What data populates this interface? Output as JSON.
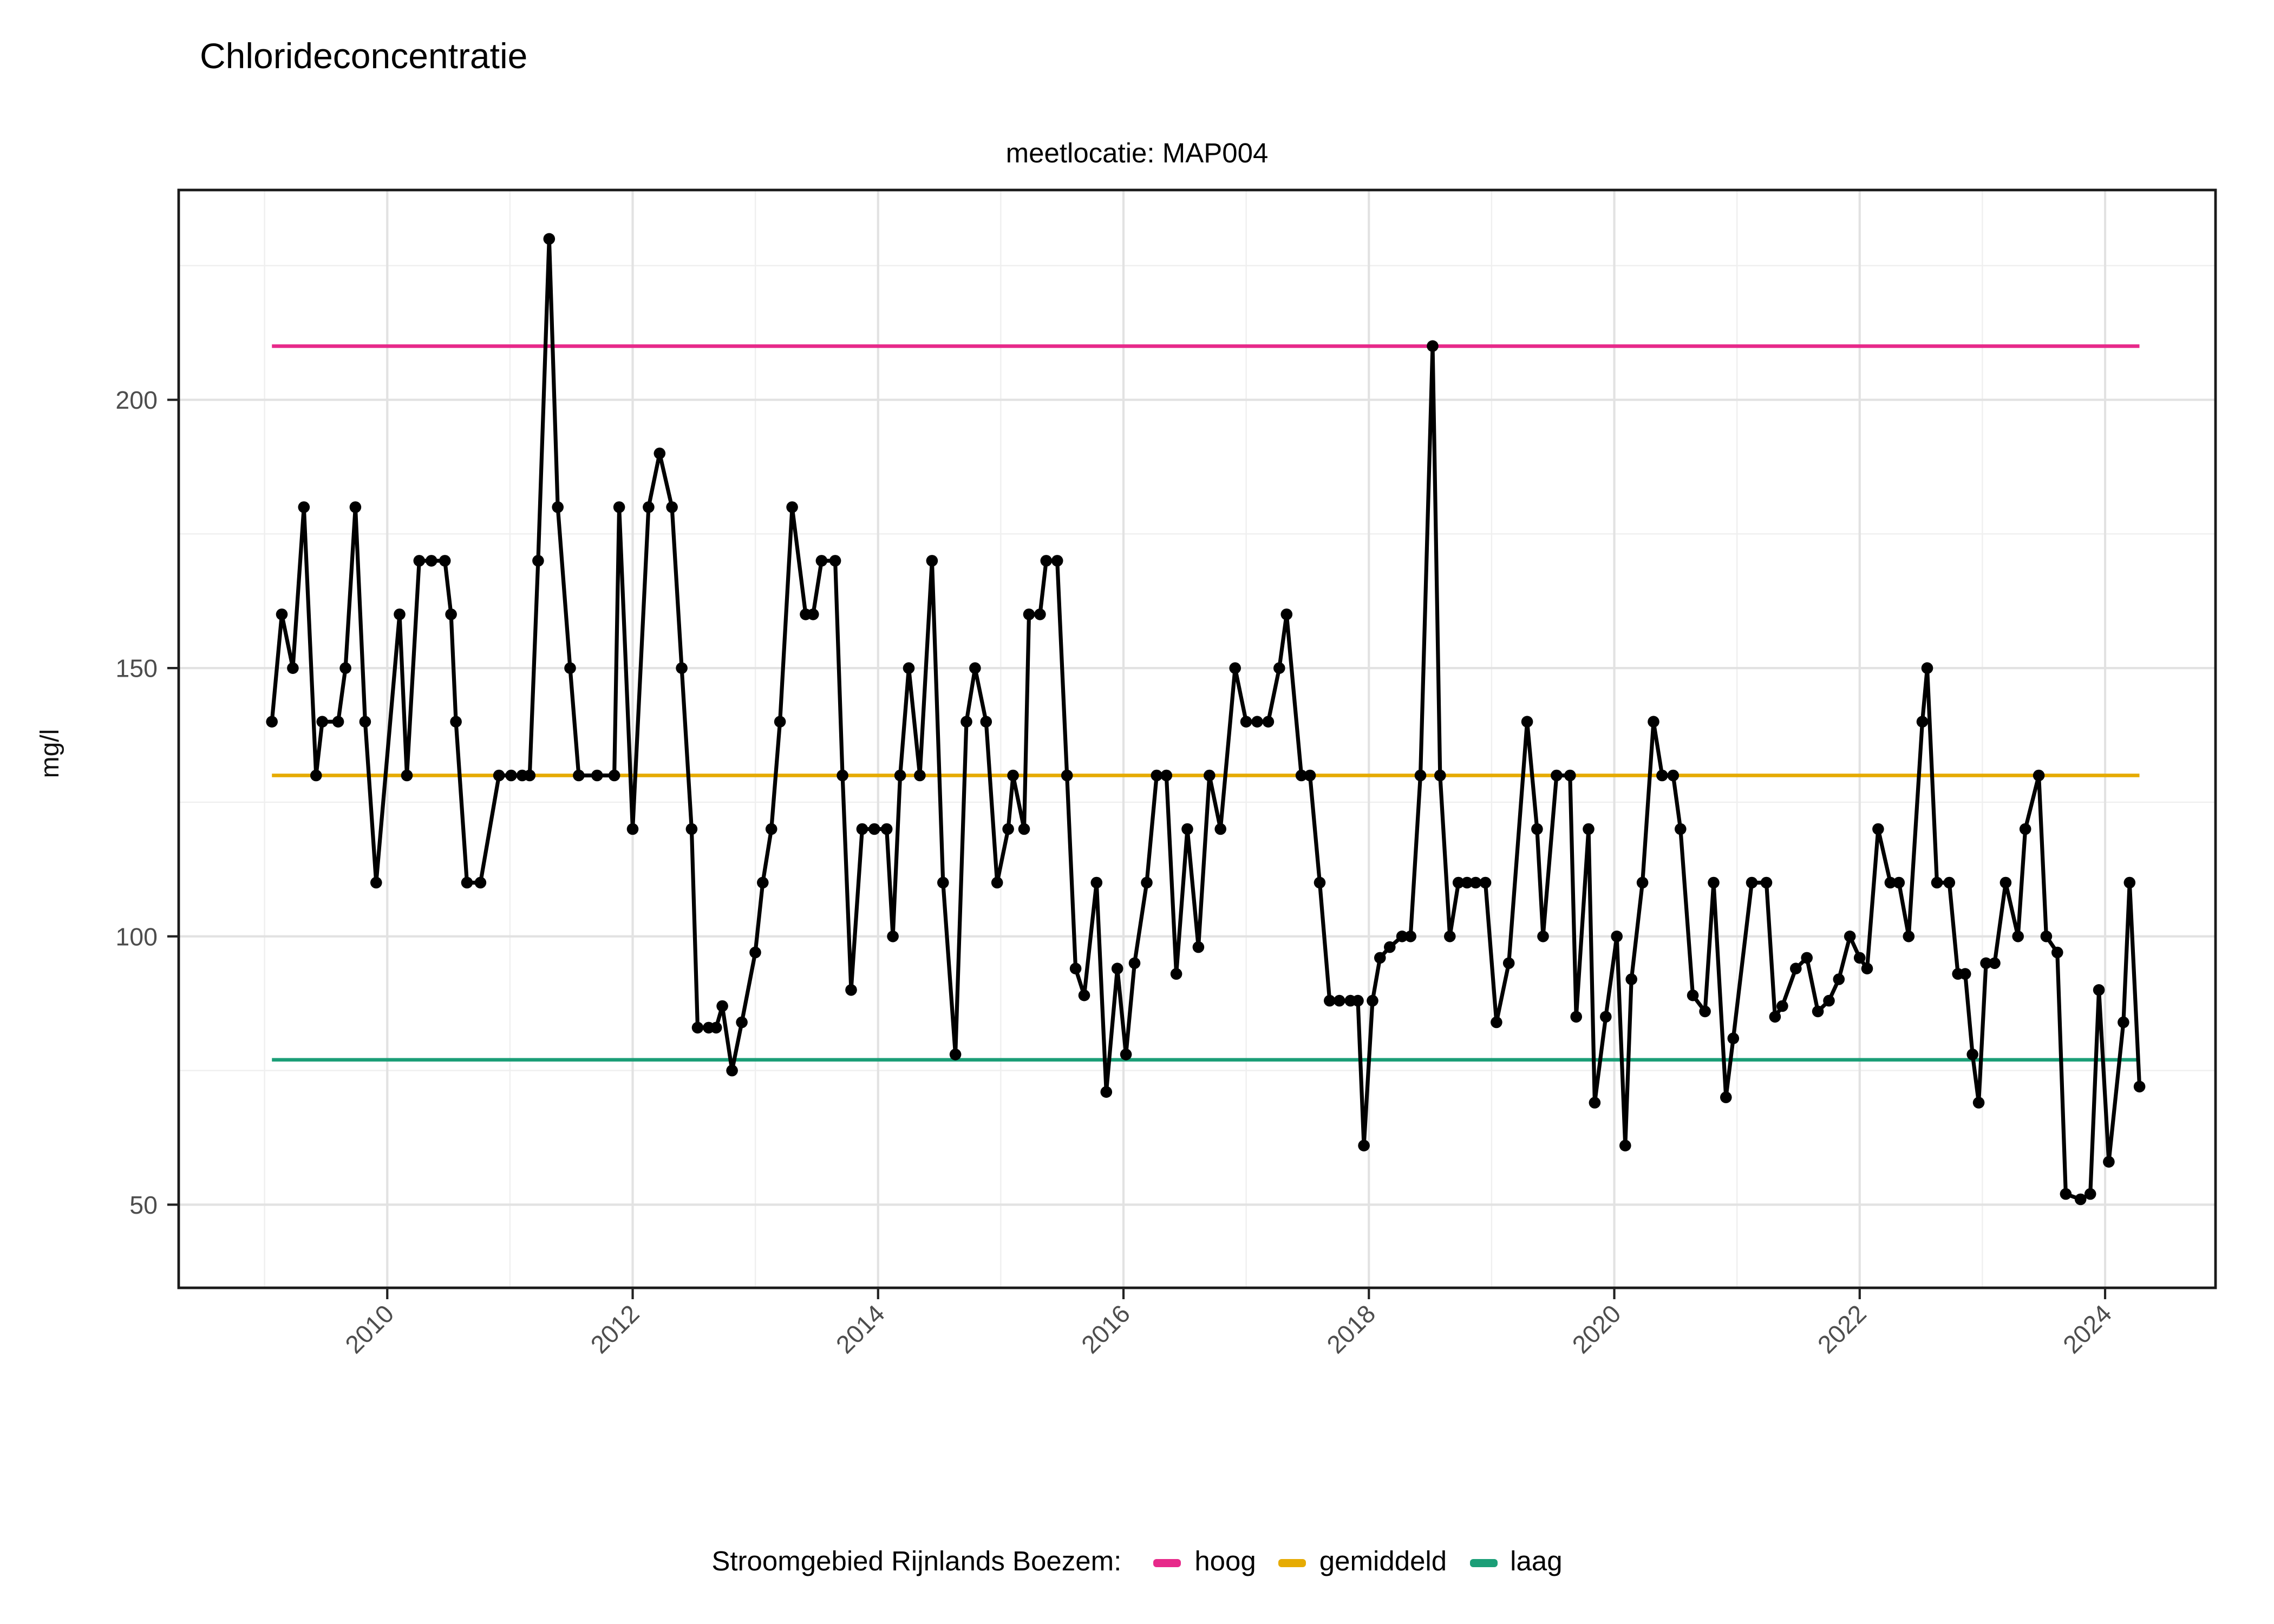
{
  "title": "Chlorideconcentratie",
  "subtitle": "meetlocatie: MAP004",
  "y_axis_title": "mg/l",
  "legend": {
    "title": "Stroomgebied Rijnlands Boezem:",
    "items": [
      {
        "label": "hoog",
        "color": "#E7298A"
      },
      {
        "label": "gemiddeld",
        "color": "#E6AB02"
      },
      {
        "label": "laag",
        "color": "#1B9E77"
      }
    ]
  },
  "chart_data": {
    "type": "line",
    "title": "Chlorideconcentratie",
    "subtitle": "meetlocatie: MAP004",
    "xlabel": "",
    "ylabel": "mg/l",
    "xlim": [
      2008.3,
      2024.9
    ],
    "ylim": [
      34.5,
      239.1
    ],
    "x_ticks": [
      2010,
      2012,
      2014,
      2016,
      2018,
      2020,
      2022,
      2024
    ],
    "x_tick_labels": [
      "2010",
      "2012",
      "2014",
      "2016",
      "2018",
      "2020",
      "2022",
      "2024"
    ],
    "x_minor": [
      2009,
      2011,
      2013,
      2015,
      2017,
      2019,
      2021,
      2023
    ],
    "y_ticks": [
      50,
      100,
      150,
      200
    ],
    "y_tick_labels": [
      "50",
      "100",
      "150",
      "200"
    ],
    "y_minor": [
      75,
      125,
      175,
      225
    ],
    "grid_major_color": "#E2E2E2",
    "grid_minor_color": "#EFEFEF",
    "panel_border_color": "#1a1a1a",
    "tick_label_color": "#4D4D4D",
    "series_color": "#000000",
    "reference_lines": [
      {
        "name": "hoog",
        "value": 210,
        "color": "#E7298A"
      },
      {
        "name": "gemiddeld",
        "value": 130,
        "color": "#E6AB02"
      },
      {
        "name": "laag",
        "value": 77,
        "color": "#1B9E77"
      }
    ],
    "x": [
      2009.06,
      2009.14,
      2009.23,
      2009.32,
      2009.42,
      2009.47,
      2009.6,
      2009.66,
      2009.74,
      2009.82,
      2009.91,
      2010.1,
      2010.16,
      2010.26,
      2010.36,
      2010.47,
      2010.52,
      2010.56,
      2010.65,
      2010.76,
      2010.91,
      2011.01,
      2011.1,
      2011.16,
      2011.23,
      2011.32,
      2011.39,
      2011.49,
      2011.56,
      2011.71,
      2011.85,
      2011.89,
      2012.0,
      2012.13,
      2012.22,
      2012.32,
      2012.4,
      2012.48,
      2012.53,
      2012.62,
      2012.68,
      2012.73,
      2012.81,
      2012.89,
      2013.0,
      2013.06,
      2013.13,
      2013.2,
      2013.3,
      2013.41,
      2013.47,
      2013.54,
      2013.65,
      2013.71,
      2013.78,
      2013.87,
      2013.97,
      2014.07,
      2014.12,
      2014.18,
      2014.25,
      2014.34,
      2014.44,
      2014.53,
      2014.63,
      2014.72,
      2014.79,
      2014.88,
      2014.97,
      2015.06,
      2015.1,
      2015.19,
      2015.23,
      2015.32,
      2015.37,
      2015.46,
      2015.54,
      2015.61,
      2015.68,
      2015.78,
      2015.86,
      2015.95,
      2016.02,
      2016.09,
      2016.19,
      2016.27,
      2016.35,
      2016.43,
      2016.52,
      2016.61,
      2016.7,
      2016.79,
      2016.91,
      2017.0,
      2017.09,
      2017.18,
      2017.27,
      2017.33,
      2017.45,
      2017.52,
      2017.6,
      2017.68,
      2017.76,
      2017.85,
      2017.91,
      2017.96,
      2018.03,
      2018.09,
      2018.17,
      2018.27,
      2018.34,
      2018.42,
      2018.52,
      2018.58,
      2018.66,
      2018.73,
      2018.8,
      2018.87,
      2018.95,
      2019.04,
      2019.14,
      2019.29,
      2019.37,
      2019.42,
      2019.53,
      2019.64,
      2019.69,
      2019.79,
      2019.84,
      2019.93,
      2020.02,
      2020.09,
      2020.14,
      2020.23,
      2020.32,
      2020.39,
      2020.48,
      2020.54,
      2020.64,
      2020.74,
      2020.81,
      2020.91,
      2020.97,
      2021.12,
      2021.24,
      2021.31,
      2021.37,
      2021.48,
      2021.57,
      2021.66,
      2021.75,
      2021.83,
      2021.92,
      2022.0,
      2022.06,
      2022.15,
      2022.25,
      2022.32,
      2022.4,
      2022.51,
      2022.55,
      2022.63,
      2022.73,
      2022.8,
      2022.86,
      2022.92,
      2022.97,
      2023.03,
      2023.1,
      2023.19,
      2023.29,
      2023.35,
      2023.46,
      2023.52,
      2023.61,
      2023.68,
      2023.8,
      2023.88,
      2023.95,
      2024.03,
      2024.15,
      2024.2,
      2024.28
    ],
    "y": [
      140,
      160,
      150,
      180,
      130,
      140,
      140,
      150,
      180,
      140,
      110,
      160,
      130,
      170,
      170,
      170,
      160,
      140,
      110,
      110,
      130,
      130,
      130,
      130,
      170,
      230,
      180,
      150,
      130,
      130,
      130,
      180,
      120,
      180,
      190,
      180,
      150,
      120,
      83,
      83,
      83,
      87,
      75,
      84,
      97,
      110,
      120,
      140,
      180,
      160,
      160,
      170,
      170,
      130,
      90,
      120,
      120,
      120,
      100,
      130,
      150,
      130,
      170,
      110,
      78,
      140,
      150,
      140,
      110,
      120,
      130,
      120,
      160,
      160,
      170,
      170,
      130,
      94,
      89,
      110,
      71,
      94,
      78,
      95,
      110,
      130,
      130,
      93,
      120,
      98,
      130,
      120,
      150,
      140,
      140,
      140,
      150,
      160,
      130,
      130,
      110,
      88,
      88,
      88,
      88,
      61,
      88,
      96,
      98,
      100,
      100,
      130,
      210,
      130,
      100,
      110,
      110,
      110,
      110,
      84,
      95,
      140,
      120,
      100,
      130,
      130,
      85,
      120,
      69,
      85,
      100,
      61,
      92,
      110,
      140,
      130,
      130,
      120,
      89,
      86,
      110,
      70,
      81,
      110,
      110,
      85,
      87,
      94,
      96,
      86,
      88,
      92,
      100,
      96,
      94,
      120,
      110,
      110,
      100,
      140,
      150,
      110,
      110,
      93,
      93,
      78,
      69,
      95,
      95,
      110,
      100,
      120,
      130,
      100,
      97,
      52,
      51,
      52,
      90,
      58,
      84,
      110,
      72
    ],
    "legend_position": "bottom",
    "grid": true
  }
}
